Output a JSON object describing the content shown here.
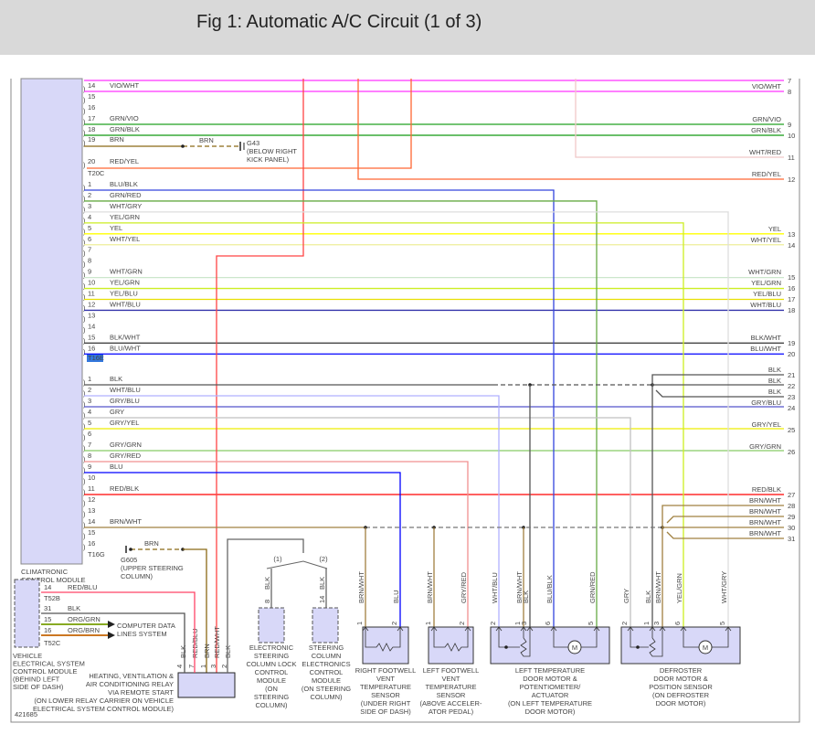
{
  "title": "Fig 1: Automatic A/C Circuit (1 of 3)",
  "figure_id": "421685",
  "colors": {
    "VIO/WHT": "#ff33ff",
    "GRN/VIO": "#22a022",
    "GRN/BLK": "#119911",
    "BRN": "#8b6914",
    "RED/YEL": "#ff6633",
    "BLU/BLK": "#3344dd",
    "GRN/RED": "#66aa44",
    "WHT/GRY": "#dddddd",
    "YEL/GRN": "#ccee22",
    "YEL": "#ffff00",
    "WHT/YEL": "#eeee99",
    "WHT/GRN": "#cce6cc",
    "YEL/BLU": "#e8e000",
    "WHT/BLU": "#3333aa",
    "BLK/WHT": "#444444",
    "BLU/WHT": "#0000ff",
    "BLK": "#555555",
    "WHT/BLU2": "#b0b0ff",
    "GRY/BLU": "#5555cc",
    "GRY": "#c0c0c0",
    "GRY/YEL": "#eeee00",
    "GRY/GRN": "#88cc66",
    "GRY/RED": "#f09090",
    "BLU": "#0000ff",
    "RED/BLK": "#ff0000",
    "BRN/WHT": "#a08040",
    "RED/WHT": "#ff4444",
    "WHT/RED": "#f0c8c8",
    "RED/BLU": "#ff4466",
    "ORG/GRN": "#88aa22",
    "ORG/BRN": "#cc7722",
    "module_fill": "#d8d8f8"
  },
  "connectors": [
    {
      "name": "T20C",
      "pins": [
        {
          "pin": "14",
          "wire": "VIO/WHT"
        },
        {
          "pin": "15",
          "wire": ""
        },
        {
          "pin": "16",
          "wire": ""
        },
        {
          "pin": "17",
          "wire": "GRN/VIO"
        },
        {
          "pin": "18",
          "wire": "GRN/BLK"
        },
        {
          "pin": "19",
          "wire": "BRN"
        },
        {
          "pin": "20",
          "wire": "RED/YEL"
        }
      ]
    },
    {
      "name": "T16E",
      "pins": [
        {
          "pin": "1",
          "wire": "BLU/BLK"
        },
        {
          "pin": "2",
          "wire": "GRN/RED"
        },
        {
          "pin": "3",
          "wire": "WHT/GRY"
        },
        {
          "pin": "4",
          "wire": "YEL/GRN"
        },
        {
          "pin": "5",
          "wire": "YEL"
        },
        {
          "pin": "6",
          "wire": "WHT/YEL"
        },
        {
          "pin": "7",
          "wire": ""
        },
        {
          "pin": "8",
          "wire": ""
        },
        {
          "pin": "9",
          "wire": "WHT/GRN"
        },
        {
          "pin": "10",
          "wire": "YEL/GRN"
        },
        {
          "pin": "11",
          "wire": "YEL/BLU"
        },
        {
          "pin": "12",
          "wire": "WHT/BLU"
        },
        {
          "pin": "13",
          "wire": ""
        },
        {
          "pin": "14",
          "wire": ""
        },
        {
          "pin": "15",
          "wire": "BLK/WHT"
        },
        {
          "pin": "16",
          "wire": "BLU/WHT"
        }
      ]
    },
    {
      "name": "T16G",
      "pins": [
        {
          "pin": "1",
          "wire": "BLK"
        },
        {
          "pin": "2",
          "wire": "WHT/BLU"
        },
        {
          "pin": "3",
          "wire": "GRY/BLU"
        },
        {
          "pin": "4",
          "wire": "GRY"
        },
        {
          "pin": "5",
          "wire": "GRY/YEL"
        },
        {
          "pin": "6",
          "wire": ""
        },
        {
          "pin": "7",
          "wire": "GRY/GRN"
        },
        {
          "pin": "8",
          "wire": "GRY/RED"
        },
        {
          "pin": "9",
          "wire": "BLU"
        },
        {
          "pin": "10",
          "wire": ""
        },
        {
          "pin": "11",
          "wire": "RED/BLK"
        },
        {
          "pin": "12",
          "wire": ""
        },
        {
          "pin": "13",
          "wire": ""
        },
        {
          "pin": "14",
          "wire": "BRN/WHT"
        },
        {
          "pin": "15",
          "wire": ""
        },
        {
          "pin": "16",
          "wire": ""
        }
      ]
    }
  ],
  "right_terminals": [
    {
      "num": "7",
      "wire": ""
    },
    {
      "num": "8",
      "wire": "VIO/WHT"
    },
    {
      "num": "9",
      "wire": "GRN/VIO"
    },
    {
      "num": "10",
      "wire": "GRN/BLK"
    },
    {
      "num": "11",
      "wire": "WHT/RED"
    },
    {
      "num": "12",
      "wire": "RED/YEL"
    },
    {
      "num": "13",
      "wire": "YEL"
    },
    {
      "num": "14",
      "wire": "WHT/YEL"
    },
    {
      "num": "15",
      "wire": "WHT/GRN"
    },
    {
      "num": "16",
      "wire": "YEL/GRN"
    },
    {
      "num": "17",
      "wire": "YEL/BLU"
    },
    {
      "num": "18",
      "wire": "WHT/BLU"
    },
    {
      "num": "19",
      "wire": "BLK/WHT"
    },
    {
      "num": "20",
      "wire": "BLU/WHT"
    },
    {
      "num": "21",
      "wire": "BLK"
    },
    {
      "num": "22",
      "wire": "BLK"
    },
    {
      "num": "23",
      "wire": "BLK"
    },
    {
      "num": "24",
      "wire": "GRY/BLU"
    },
    {
      "num": "25",
      "wire": "GRY/YEL"
    },
    {
      "num": "26",
      "wire": "GRY/GRN"
    },
    {
      "num": "27",
      "wire": "RED/BLK"
    },
    {
      "num": "28",
      "wire": "BRN/WHT"
    },
    {
      "num": "29",
      "wire": "BRN/WHT"
    },
    {
      "num": "30",
      "wire": "BRN/WHT"
    },
    {
      "num": "31",
      "wire": "BRN/WHT"
    }
  ],
  "grounds": {
    "g43": {
      "wire": "BRN",
      "label": [
        "G43",
        "(BELOW RIGHT",
        "KICK PANEL)"
      ]
    },
    "g605": {
      "wire": "BRN",
      "label": [
        "G605",
        "(UPPER STEERING",
        "COLUMN)"
      ]
    }
  },
  "climatronic": {
    "label": [
      "CLIMATRONIC",
      "CONTROL MODULE"
    ]
  },
  "vescm": {
    "label": [
      "VEHICLE",
      "ELECTRICAL SYSTEM",
      "CONTROL MODULE",
      "(BEHIND LEFT",
      "SIDE OF DASH)"
    ],
    "connectors": [
      "T52B",
      "T52C"
    ],
    "pins": [
      {
        "pin": "14",
        "wire": "RED/BLU"
      },
      {
        "pin": "31",
        "wire": "BLK"
      },
      {
        "pin": "15",
        "wire": "ORG/GRN"
      },
      {
        "pin": "16",
        "wire": "ORG/BRN"
      }
    ],
    "arrow_label": [
      "COMPUTER DATA",
      "LINES SYSTEM"
    ]
  },
  "relay": {
    "label": [
      "HEATING, VENTILATION &",
      "AIR CONDITIONING RELAY",
      "VIA REMOTE START",
      "(ON LOWER RELAY CARRIER ON VEHICLE",
      "ELECTRICAL SYSTEM CONTROL MODULE)"
    ],
    "pins": [
      {
        "num": "4",
        "wire": "BLK"
      },
      {
        "num": "7",
        "wire": "RED/BLU"
      },
      {
        "num": "1",
        "wire": "BRN"
      },
      {
        "num": "3",
        "wire": "RED/WHT"
      },
      {
        "num": "2",
        "wire": "BLK"
      }
    ]
  },
  "variants": [
    "1",
    "2"
  ],
  "steering_lock": {
    "pin": {
      "num": "8",
      "wire": "BLK"
    },
    "label": [
      "ELECTRONIC",
      "STEERING",
      "COLUMN LOCK",
      "CONTROL",
      "MODULE",
      "(ON",
      "STEERING",
      "COLUMN)"
    ]
  },
  "steering_elec": {
    "pin": {
      "num": "14",
      "wire": "BLK"
    },
    "label": [
      "STEERING",
      "COLUMN",
      "ELECTRONICS",
      "CONTROL",
      "MODULE",
      "(ON STEERING",
      "COLUMN)"
    ]
  },
  "sensors": [
    {
      "id": "right_footwell",
      "pins": [
        {
          "num": "1",
          "wire": "BRN/WHT"
        },
        {
          "num": "2",
          "wire": "BLU"
        }
      ],
      "label": [
        "RIGHT FOOTWELL",
        "VENT",
        "TEMPERATURE",
        "SENSOR",
        "(UNDER RIGHT",
        "SIDE OF DASH)"
      ]
    },
    {
      "id": "left_footwell",
      "pins": [
        {
          "num": "1",
          "wire": "BRN/WHT"
        },
        {
          "num": "2",
          "wire": "GRY/RED"
        }
      ],
      "label": [
        "LEFT FOOTWELL",
        "VENT",
        "TEMPERATURE",
        "SENSOR",
        "(ABOVE ACCELER-",
        "ATOR PEDAL)"
      ]
    },
    {
      "id": "left_temp_motor",
      "pins": [
        {
          "num": "2",
          "wire": "WHT/BLU"
        },
        {
          "num": "1",
          "wire": "BRN/WHT"
        },
        {
          "num": "3",
          "wire": "BLK"
        },
        {
          "num": "6",
          "wire": "BLU/BLK"
        },
        {
          "num": "5",
          "wire": "GRN/RED"
        }
      ],
      "motor": "M",
      "label": [
        "LEFT TEMPERATURE",
        "DOOR MOTOR &",
        "POTENTIOMETER/",
        "ACTUATOR",
        "(ON LEFT TEMPERATURE",
        "DOOR MOTOR)"
      ]
    },
    {
      "id": "defroster_motor",
      "pins": [
        {
          "num": "2",
          "wire": "GRY"
        },
        {
          "num": "1",
          "wire": "BLK"
        },
        {
          "num": "3",
          "wire": "BRN/WHT"
        },
        {
          "num": "6",
          "wire": "YEL/GRN"
        },
        {
          "num": "5",
          "wire": "WHT/GRY"
        }
      ],
      "motor": "M",
      "label": [
        "DEFROSTER",
        "DOOR MOTOR &",
        "POSITION SENSOR",
        "(ON DEFROSTER",
        "DOOR MOTOR)"
      ]
    }
  ]
}
